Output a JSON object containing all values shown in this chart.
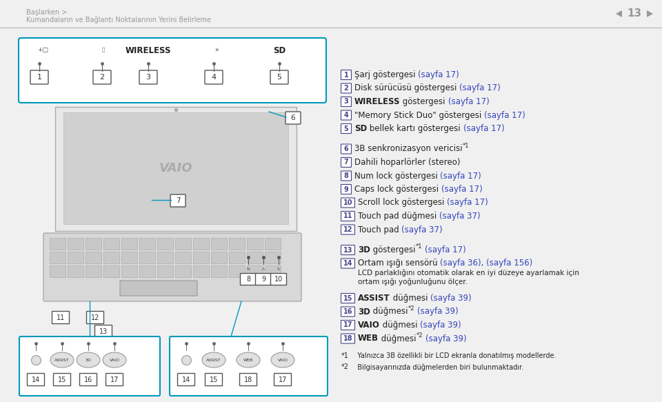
{
  "bg_color": "#f0f0f0",
  "header_color": "#999999",
  "link_color": "#3344bb",
  "text_color": "#222222",
  "box_border_color": "#444488",
  "cyan_color": "#0099bb",
  "page_number": "13",
  "header_line1": "Başlarken >",
  "header_line2": "Kumandaların ve Bağlantı Noktalarının Yerini Belirleme",
  "footnote1_sup": "*1",
  "footnote1_text": "   Yalnızca 3B özellikli bir LCD ekranla donatılmış modellerde.",
  "footnote2_sup": "*2",
  "footnote2_text": "   Bilgisayarınızda düğmelerden biri bulunmaktadır.",
  "items": [
    {
      "num": "1",
      "parts": [
        [
          "Şarj göstergesi ",
          false
        ],
        [
          "(sayfa 17)",
          true
        ]
      ]
    },
    {
      "num": "2",
      "parts": [
        [
          "Disk sürücüsü göstergesi ",
          false
        ],
        [
          "(sayfa 17)",
          true
        ]
      ]
    },
    {
      "num": "3",
      "parts": [
        [
          "WIRELESS",
          false,
          true
        ],
        [
          " göstergesi ",
          false
        ],
        [
          "(sayfa 17)",
          true
        ]
      ]
    },
    {
      "num": "4",
      "parts": [
        [
          "\"Memory Stick Duo\" göstergesi ",
          false
        ],
        [
          "(sayfa 17)",
          true
        ]
      ]
    },
    {
      "num": "5",
      "parts": [
        [
          "SD",
          false,
          true
        ],
        [
          " bellek kartı göstergesi ",
          false
        ],
        [
          "(sayfa 17)",
          true
        ]
      ]
    },
    {
      "num": "6",
      "parts": [
        [
          "3B senkronizasyon vericisi",
          false
        ],
        [
          "*1",
          false,
          false,
          true
        ]
      ]
    },
    {
      "num": "7",
      "parts": [
        [
          "Dahili hoparlörler (stereo)",
          false
        ]
      ]
    },
    {
      "num": "8",
      "parts": [
        [
          "Num lock göstergesi ",
          false
        ],
        [
          "(sayfa 17)",
          true
        ]
      ]
    },
    {
      "num": "9",
      "parts": [
        [
          "Caps lock göstergesi ",
          false
        ],
        [
          "(sayfa 17)",
          true
        ]
      ]
    },
    {
      "num": "10",
      "parts": [
        [
          "Scroll lock göstergesi ",
          false
        ],
        [
          "(sayfa 17)",
          true
        ]
      ]
    },
    {
      "num": "11",
      "parts": [
        [
          "Touch pad düğmesi ",
          false
        ],
        [
          "(sayfa 37)",
          true
        ]
      ]
    },
    {
      "num": "12",
      "parts": [
        [
          "Touch pad ",
          false
        ],
        [
          "(sayfa 37)",
          true
        ]
      ]
    },
    {
      "num": "13",
      "parts": [
        [
          "3D",
          false,
          true
        ],
        [
          " göstergesi",
          false
        ],
        [
          "*1",
          false,
          false,
          true
        ],
        [
          " ",
          false
        ],
        [
          "(sayfa 17)",
          true
        ]
      ]
    },
    {
      "num": "14",
      "parts": [
        [
          "Ortam ışığı sensörü ",
          false
        ],
        [
          "(sayfa 36), (sayfa 156)",
          true
        ]
      ],
      "extra": [
        "LCD parlaklığını otomatik olarak en iyi düzeye ayarlamak için",
        "ortam ışığı yoğunluğunu ölçer."
      ]
    },
    {
      "num": "15",
      "parts": [
        [
          "ASSIST",
          false,
          true
        ],
        [
          " düğmesi ",
          false
        ],
        [
          "(sayfa 39)",
          true
        ]
      ]
    },
    {
      "num": "16",
      "parts": [
        [
          "3D",
          false,
          true
        ],
        [
          " düğmesi",
          false
        ],
        [
          "*2",
          false,
          false,
          true
        ],
        [
          " ",
          false
        ],
        [
          "(sayfa 39)",
          true
        ]
      ]
    },
    {
      "num": "17",
      "parts": [
        [
          "VAIO",
          false,
          true
        ],
        [
          " düğmesi ",
          false
        ],
        [
          "(sayfa 39)",
          true
        ]
      ]
    },
    {
      "num": "18",
      "parts": [
        [
          "WEB",
          false,
          true
        ],
        [
          " düğmesi",
          false
        ],
        [
          "*2",
          false,
          false,
          true
        ],
        [
          " ",
          false
        ],
        [
          "(sayfa 39)",
          true
        ]
      ]
    }
  ]
}
